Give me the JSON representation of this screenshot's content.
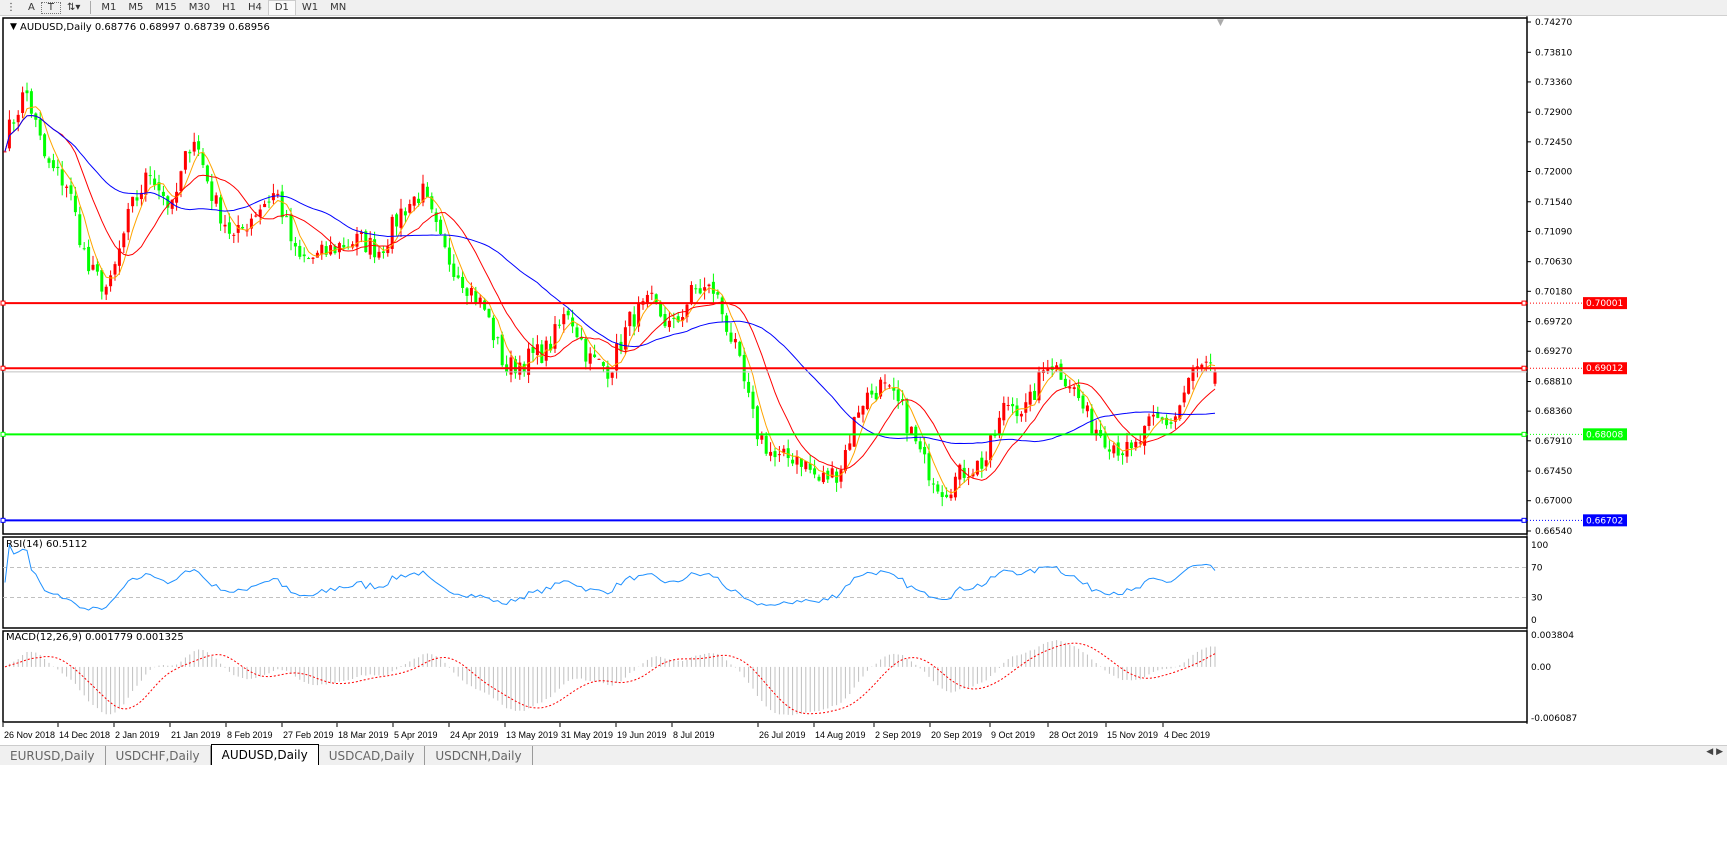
{
  "toolbar": {
    "tools": [
      "A",
      "T"
    ],
    "timeframes": [
      "M1",
      "M5",
      "M15",
      "M30",
      "H1",
      "H4",
      "D1",
      "W1",
      "MN"
    ],
    "active_timeframe": "D1"
  },
  "chart": {
    "header": "AUDUSD,Daily  0.68776 0.68997 0.68739 0.68956",
    "rsi_label": "RSI(14) 60.5112",
    "macd_label": "MACD(12,26,9) 0.001779 0.001325",
    "colors": {
      "up": "#ff0000",
      "down": "#00ff00",
      "ma_fast": "#ffa500",
      "ma_mid": "#ff0000",
      "ma_slow": "#0000ff",
      "rsi": "#1e90ff",
      "macd_hist": "#c0c0c0",
      "macd_signal": "#ff0000"
    }
  },
  "chart_data": {
    "type": "candlestick",
    "symbol": "AUDUSD",
    "timeframe": "Daily",
    "last": {
      "open": 0.68776,
      "high": 0.68997,
      "low": 0.68739,
      "close": 0.68956
    },
    "ylim": [
      0.6654,
      0.7427
    ],
    "price_ticks": [
      "0.74270",
      "0.73810",
      "0.73360",
      "0.72900",
      "0.72450",
      "0.72000",
      "0.71540",
      "0.71090",
      "0.70630",
      "0.70180",
      "0.69720",
      "0.69270",
      "0.68810",
      "0.68360",
      "0.67910",
      "0.67450",
      "0.67000",
      "0.66540"
    ],
    "date_ticks": [
      "26 Nov 2018",
      "14 Dec 2018",
      "2 Jan 2019",
      "21 Jan 2019",
      "8 Feb 2019",
      "27 Feb 2019",
      "18 Mar 2019",
      "5 Apr 2019",
      "24 Apr 2019",
      "13 May 2019",
      "31 May 2019",
      "19 Jun 2019",
      "8 Jul 2019",
      "26 Jul 2019",
      "14 Aug 2019",
      "2 Sep 2019",
      "20 Sep 2019",
      "9 Oct 2019",
      "28 Oct 2019",
      "15 Nov 2019",
      "4 Dec 2019"
    ],
    "approx_weekly_closes": [
      0.7248,
      0.7324,
      0.721,
      0.718,
      0.705,
      0.702,
      0.714,
      0.7202,
      0.714,
      0.726,
      0.7157,
      0.7096,
      0.714,
      0.717,
      0.7065,
      0.707,
      0.7088,
      0.7096,
      0.708,
      0.714,
      0.717,
      0.708,
      0.7035,
      0.699,
      0.69,
      0.6915,
      0.693,
      0.699,
      0.6915,
      0.69,
      0.6977,
      0.7,
      0.6959,
      0.702,
      0.702,
      0.693,
      0.6807,
      0.676,
      0.677,
      0.673,
      0.6746,
      0.685,
      0.6875,
      0.6838,
      0.676,
      0.6716,
      0.6746,
      0.676,
      0.685,
      0.6838,
      0.6915,
      0.6883,
      0.682,
      0.679,
      0.677,
      0.682,
      0.682,
      0.69,
      0.6896
    ],
    "hlines": [
      {
        "label": "0.70001",
        "value": 0.70001,
        "color": "#ff0000"
      },
      {
        "label": "0.69012",
        "value": 0.69012,
        "color": "#ff0000"
      },
      {
        "label": "0.68008",
        "value": 0.68008,
        "color": "#00ff00"
      },
      {
        "label": "0.66702",
        "value": 0.66702,
        "color": "#0000ff"
      }
    ],
    "rsi": {
      "period": 14,
      "value": 60.5112,
      "ticks": [
        "100",
        "70",
        "30",
        "0"
      ],
      "levels": [
        70,
        30
      ]
    },
    "macd": {
      "params": [
        12,
        26,
        9
      ],
      "main": 0.001779,
      "signal": 0.001325,
      "ticks": [
        "0.003804",
        "0.00",
        "-0.006087"
      ],
      "ylim": [
        -0.006087,
        0.003804
      ]
    }
  },
  "tabs": [
    "EURUSD,Daily",
    "USDCHF,Daily",
    "AUDUSD,Daily",
    "USDCAD,Daily",
    "USDCNH,Daily"
  ],
  "active_tab": "AUDUSD,Daily"
}
